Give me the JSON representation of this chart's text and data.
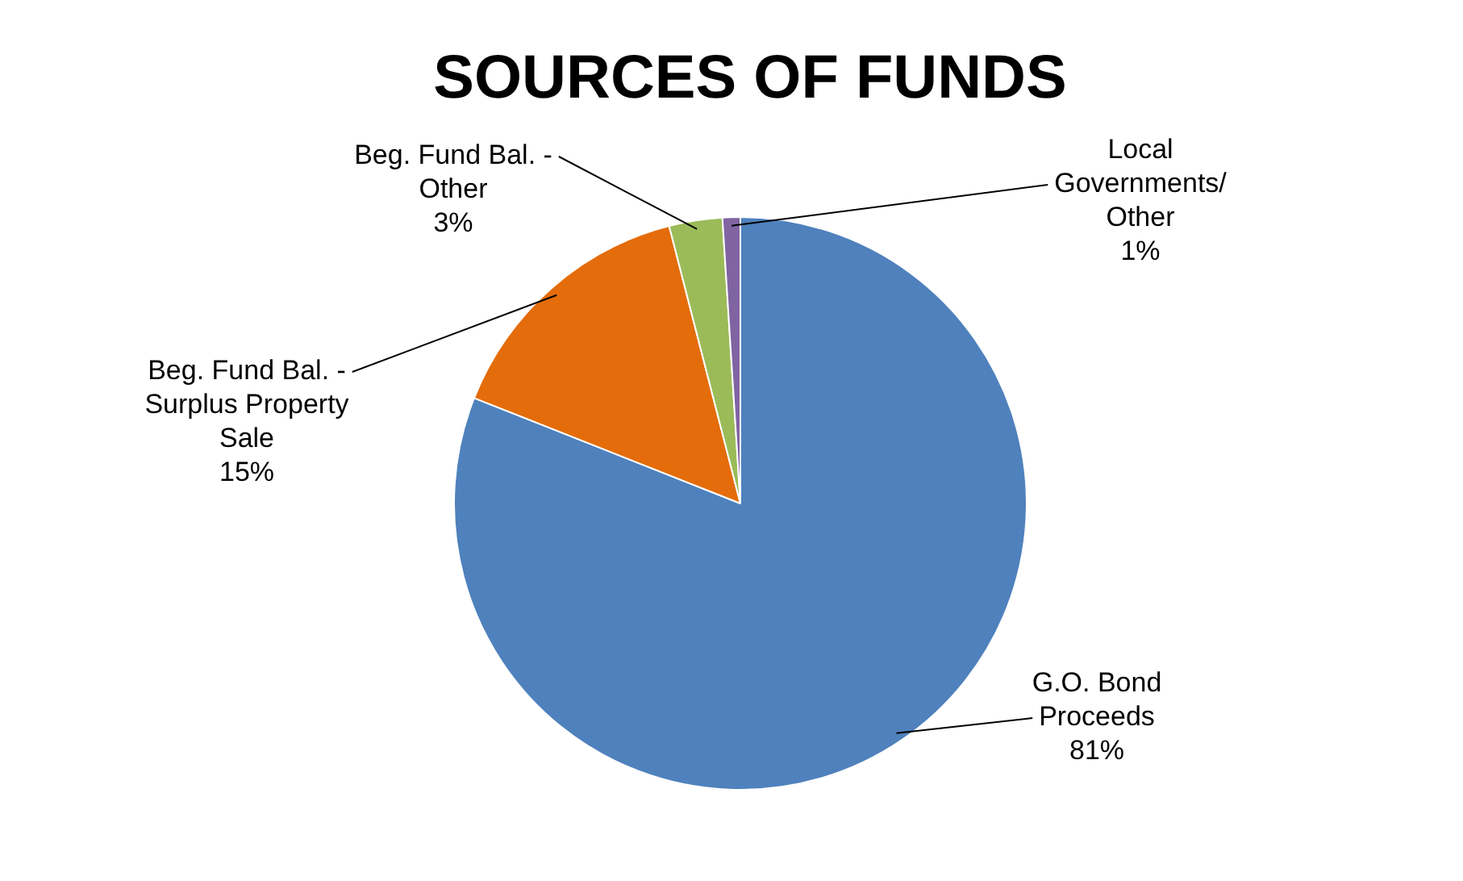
{
  "chart_data": {
    "type": "pie",
    "title": "SOURCES OF FUNDS",
    "categories": [
      "G.O. Bond Proceeds",
      "Beg. Fund Bal. - Surplus Property Sale",
      "Beg. Fund Bal. - Other",
      "Local Governments/ Other"
    ],
    "values": [
      81,
      15,
      3,
      1
    ],
    "colors": [
      "#4f81bd",
      "#e46c0a",
      "#9bbb59",
      "#8064a2"
    ],
    "value_labels": [
      "81%",
      "15%",
      "3%",
      "1%"
    ],
    "legend": false
  }
}
